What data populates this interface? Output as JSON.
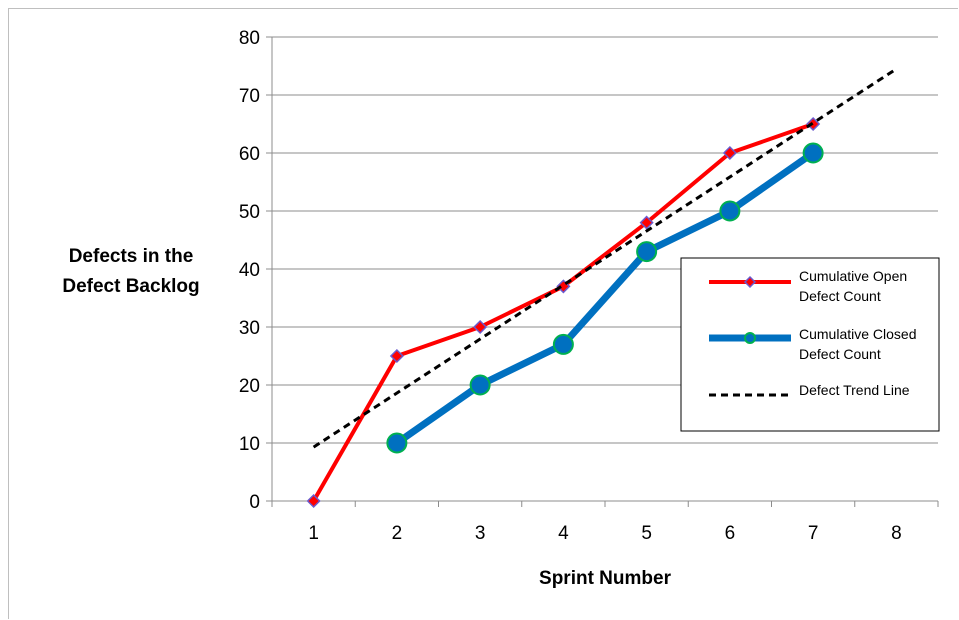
{
  "chart_data": {
    "type": "line",
    "title": "",
    "xlabel": "Sprint Number",
    "ylabel_lines": [
      "Defects in the",
      "Defect Backlog"
    ],
    "x_categories": [
      "1",
      "2",
      "3",
      "4",
      "5",
      "6",
      "7",
      "8"
    ],
    "ylim": [
      0,
      80
    ],
    "yticks": [
      0,
      10,
      20,
      30,
      40,
      50,
      60,
      70,
      80
    ],
    "grid": "horizontal",
    "legend_position": "right",
    "series": [
      {
        "name_lines": [
          "Cumulative Open",
          "Defect Count"
        ],
        "style": "line-diamond",
        "color": "#ff0000",
        "marker_fill": "#ff0000",
        "marker_stroke": "#6a5acd",
        "x": [
          1,
          2,
          3,
          4,
          5,
          6,
          7
        ],
        "values": [
          0,
          25,
          30,
          37,
          48,
          60,
          65
        ]
      },
      {
        "name_lines": [
          "Cumulative Closed",
          "Defect Count"
        ],
        "style": "line-circle",
        "color": "#0070c0",
        "marker_fill": "#0070c0",
        "marker_stroke": "#00b050",
        "x": [
          2,
          3,
          4,
          5,
          6,
          7
        ],
        "values": [
          10,
          20,
          27,
          43,
          50,
          60
        ]
      },
      {
        "name_lines": [
          "Defect Trend Line"
        ],
        "style": "dashed",
        "color": "#000000",
        "x": [
          1,
          8
        ],
        "values": [
          9.3,
          74.5
        ]
      }
    ]
  }
}
